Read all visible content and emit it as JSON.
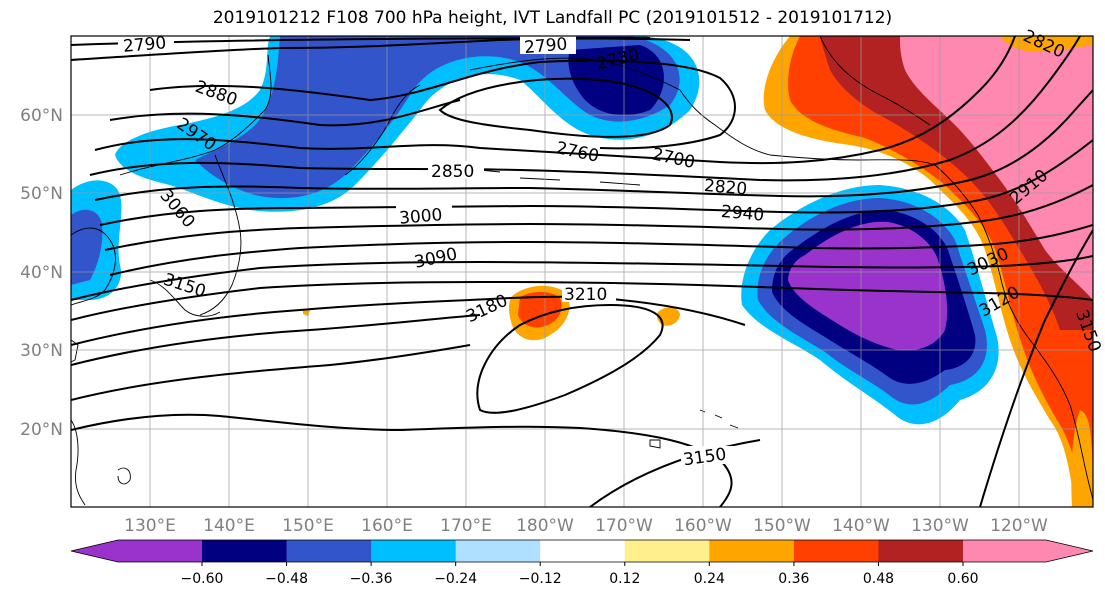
{
  "title": "2019101212 F108 700 hPa height, IVT Landfall PC (2019101512 - 2019101712)",
  "lon_labels": [
    "130°E",
    "140°E",
    "150°E",
    "160°E",
    "170°E",
    "180°W",
    "170°W",
    "160°W",
    "150°W",
    "140°W",
    "130°W",
    "120°W"
  ],
  "lat_labels": [
    "60°N",
    "50°N",
    "40°N",
    "30°N",
    "20°N"
  ],
  "colorbar": {
    "colors": [
      "#9933cc",
      "#000080",
      "#3355cc",
      "#00bfff",
      "#b0e0ff",
      "#ffffff",
      "#fff08c",
      "#ffa500",
      "#ff4000",
      "#b22222",
      "#ff88b0"
    ],
    "tick_labels": [
      "−0.60",
      "−0.48",
      "−0.36",
      "−0.24",
      "−0.12",
      "0.12",
      "0.24",
      "0.36",
      "0.48",
      "0.60"
    ]
  },
  "contour_labels": [
    {
      "text": "2790"
    },
    {
      "text": "2790"
    },
    {
      "text": "2730"
    },
    {
      "text": "2820"
    },
    {
      "text": "2880"
    },
    {
      "text": "2970"
    },
    {
      "text": "2760"
    },
    {
      "text": "2700"
    },
    {
      "text": "2850"
    },
    {
      "text": "2820"
    },
    {
      "text": "2910"
    },
    {
      "text": "3060"
    },
    {
      "text": "3000"
    },
    {
      "text": "2940"
    },
    {
      "text": "3090"
    },
    {
      "text": "3030"
    },
    {
      "text": "3150"
    },
    {
      "text": "3180"
    },
    {
      "text": "3210"
    },
    {
      "text": "3120"
    },
    {
      "text": "3150"
    },
    {
      "text": "3150"
    }
  ]
}
